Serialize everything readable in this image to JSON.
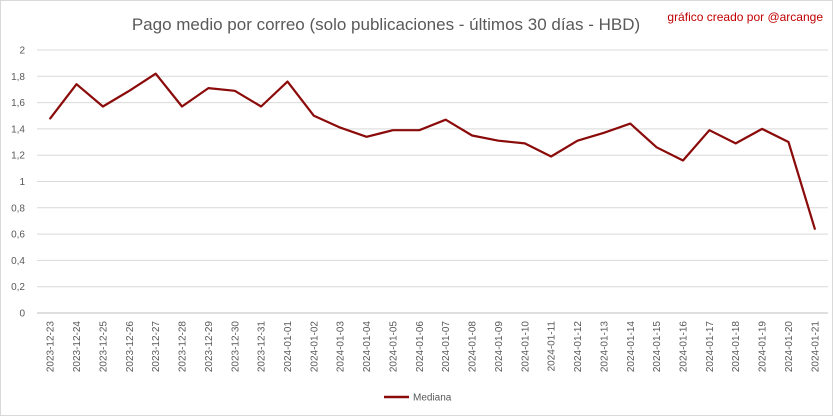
{
  "chart_data": {
    "type": "line",
    "title": "Pago medio por correo (solo publicaciones - últimos 30 días - HBD)",
    "credit": "gráfico creado por @arcange",
    "x": [
      "2023-12-23",
      "2023-12-24",
      "2023-12-25",
      "2023-12-26",
      "2023-12-27",
      "2023-12-28",
      "2023-12-29",
      "2023-12-30",
      "2023-12-31",
      "2024-01-01",
      "2024-01-02",
      "2024-01-03",
      "2024-01-04",
      "2024-01-05",
      "2024-01-06",
      "2024-01-07",
      "2024-01-08",
      "2024-01-09",
      "2024-01-10",
      "2024-01-11",
      "2024-01-12",
      "2024-01-13",
      "2024-01-14",
      "2024-01-15",
      "2024-01-16",
      "2024-01-17",
      "2024-01-18",
      "2024-01-19",
      "2024-01-20",
      "2024-01-21"
    ],
    "series": [
      {
        "name": "Mediana",
        "color": "#8b0a0a",
        "values": [
          1.48,
          1.74,
          1.57,
          1.69,
          1.82,
          1.57,
          1.71,
          1.69,
          1.57,
          1.76,
          1.5,
          1.41,
          1.34,
          1.39,
          1.39,
          1.47,
          1.35,
          1.31,
          1.29,
          1.19,
          1.31,
          1.37,
          1.44,
          1.26,
          1.16,
          1.39,
          1.29,
          1.4,
          1.3,
          0.64
        ]
      }
    ],
    "yticks": [
      "0",
      "0,2",
      "0,4",
      "0,6",
      "0,8",
      "1",
      "1,2",
      "1,4",
      "1,6",
      "1,8",
      "2"
    ],
    "ylim": [
      0,
      2
    ],
    "grid": true,
    "legend_position": "bottom"
  }
}
